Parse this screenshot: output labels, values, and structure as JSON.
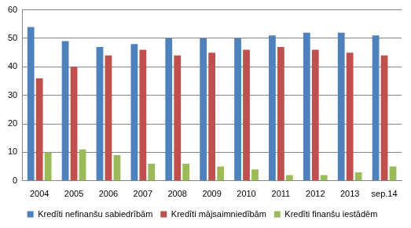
{
  "chart_data": {
    "type": "bar",
    "categories": [
      "2004",
      "2005",
      "2006",
      "2007",
      "2008",
      "2009",
      "2010",
      "2011",
      "2012",
      "2013",
      "sep.14"
    ],
    "series": [
      {
        "name": "Kredīti nefinanšu sabiedrībām",
        "color": "#4F81BD",
        "values": [
          54,
          49,
          47,
          48,
          50,
          50,
          50,
          51,
          52,
          52,
          51
        ]
      },
      {
        "name": "Kredīti mājsaimniedībām",
        "color": "#C0504D",
        "values": [
          36,
          40,
          44,
          46,
          44,
          45,
          46,
          47,
          46,
          45,
          44
        ]
      },
      {
        "name": "Kredīti finanšu iestādēm",
        "color": "#9BBB59",
        "values": [
          10,
          11,
          9,
          6,
          6,
          5,
          4,
          2,
          2,
          3,
          5
        ]
      }
    ],
    "ylim": [
      0,
      60
    ],
    "yticks": [
      0,
      10,
      20,
      30,
      40,
      50,
      60
    ],
    "grid": true,
    "legend": "bottom"
  }
}
